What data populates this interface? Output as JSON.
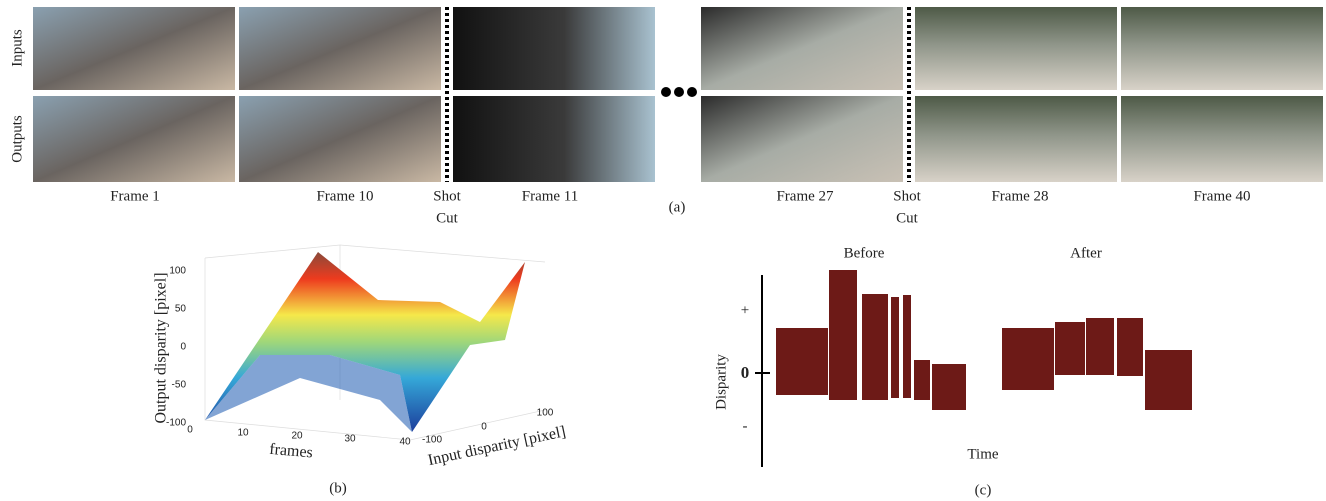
{
  "panel_a": {
    "row_labels": [
      "Inputs",
      "Outputs"
    ],
    "frame_labels": [
      "Frame 1",
      "Frame 10",
      "Frame 11",
      "Frame 27",
      "Frame 28",
      "Frame 40"
    ],
    "shot_cut_labels": [
      [
        "Shot",
        "Cut"
      ],
      [
        "Shot",
        "Cut"
      ]
    ],
    "label": "(a)"
  },
  "panel_b": {
    "z_axis_label": "Output disparity [pixel]",
    "z_ticks": [
      "100",
      "50",
      "0",
      "-50",
      "-100"
    ],
    "x_axis_label": "frames",
    "x_ticks": [
      "0",
      "10",
      "20",
      "30",
      "40"
    ],
    "y_axis_label": "Input disparity [pixel]",
    "y_ticks": [
      "-100",
      "0",
      "100"
    ],
    "label": "(b)"
  },
  "panel_c": {
    "titles": [
      "Before",
      "After"
    ],
    "y_axis_label": "Disparity",
    "y_marks": [
      "+",
      "0",
      "-"
    ],
    "x_axis_label": "Time",
    "label": "(c)"
  }
}
